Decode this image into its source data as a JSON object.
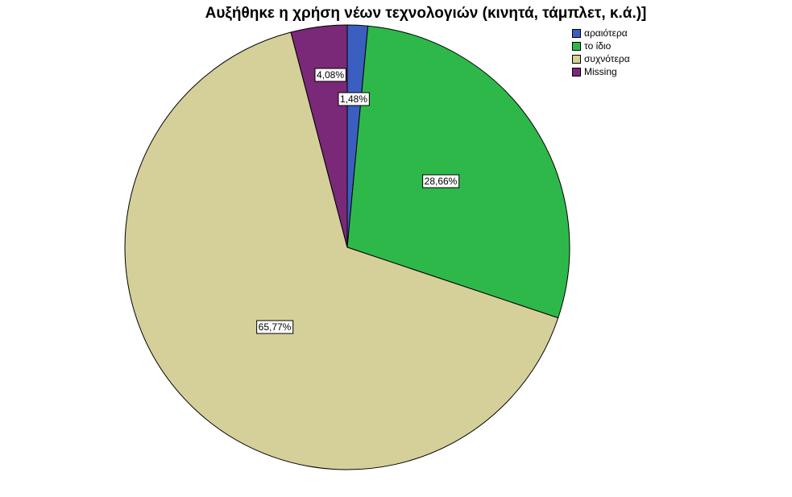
{
  "chart_data": {
    "type": "pie",
    "title": "Αυξήθηκε η χρήση νέων τεχνολογιών (κινητά, τάμπλετ, κ.ά.)]",
    "categories": [
      "αραιότερα",
      "το ίδιο",
      "συχνότερα",
      "Missing"
    ],
    "values": [
      1.48,
      28.66,
      65.77,
      4.08
    ],
    "value_labels": [
      "1,48%",
      "28,66%",
      "65,77%",
      "4,08%"
    ],
    "colors": [
      "#3a5fc0",
      "#2fb84a",
      "#d5d09a",
      "#7a2878"
    ],
    "start_angle": "12 o'clock",
    "direction": "clockwise",
    "legend_position": "top-right"
  }
}
